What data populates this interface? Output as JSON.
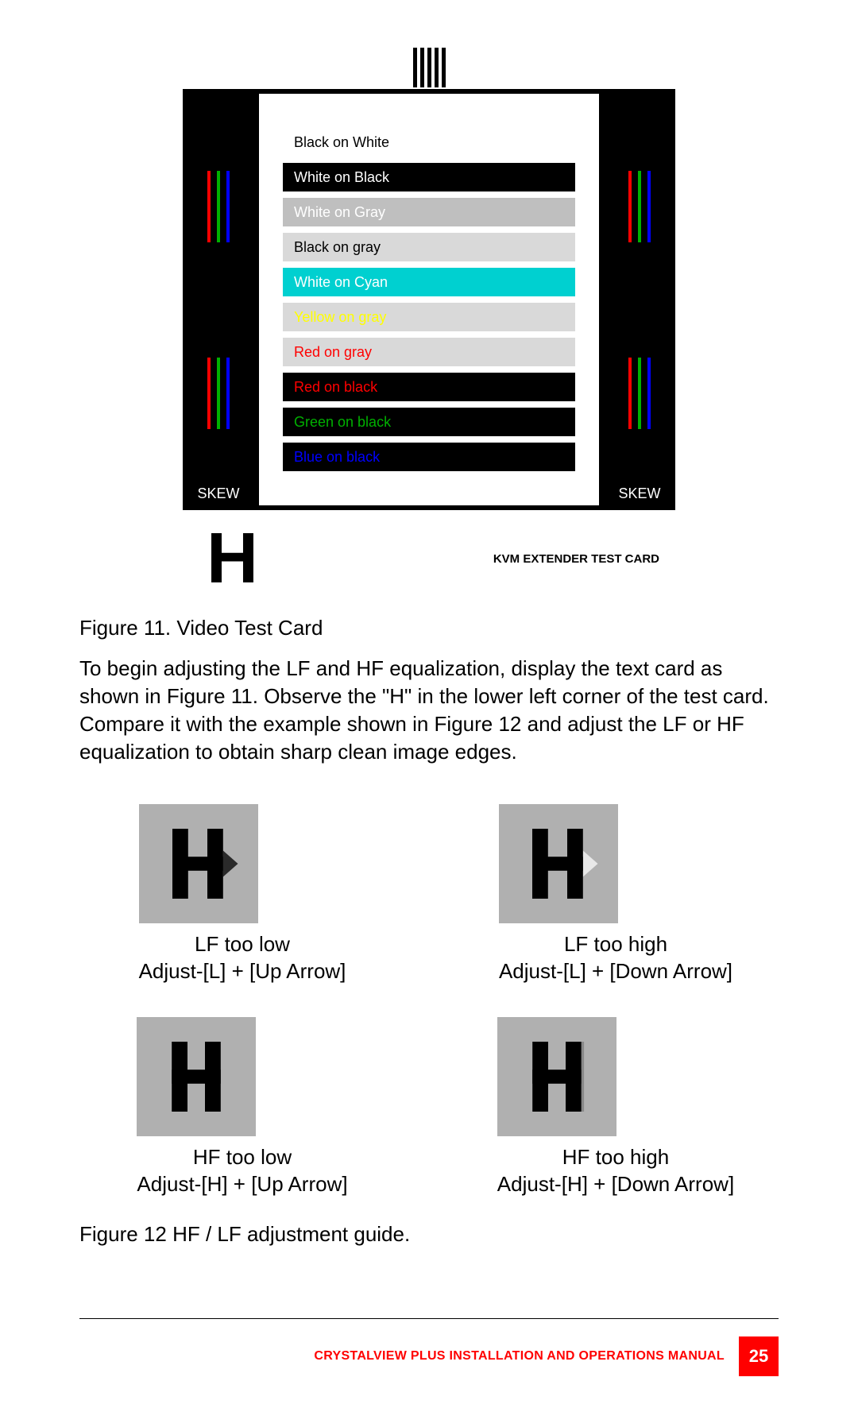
{
  "testCard": {
    "skewLabel": "SKEW",
    "rgbColors": {
      "red": "#ff0000",
      "green": "#00b000",
      "blue": "#0000ff"
    },
    "rows": [
      {
        "text": "Black on White",
        "bg": "#ffffff",
        "fg": "#000000"
      },
      {
        "text": "White on Black",
        "bg": "#000000",
        "fg": "#ffffff"
      },
      {
        "text": "White on Gray",
        "bg": "#bfbfbf",
        "fg": "#ffffff"
      },
      {
        "text": "Black on gray",
        "bg": "#d9d9d9",
        "fg": "#000000"
      },
      {
        "text": "White on Cyan",
        "bg": "#00d0d0",
        "fg": "#ffffff"
      },
      {
        "text": "Yellow on gray",
        "bg": "#d9d9d9",
        "fg": "#ffff00"
      },
      {
        "text": "Red on gray",
        "bg": "#d9d9d9",
        "fg": "#ff0000"
      },
      {
        "text": "Red on black",
        "bg": "#000000",
        "fg": "#ff0000"
      },
      {
        "text": "Green on black",
        "bg": "#000000",
        "fg": "#00b000"
      },
      {
        "text": "Blue on black",
        "bg": "#000000",
        "fg": "#0000ff"
      }
    ],
    "extenderLabel": "KVM EXTENDER TEST CARD",
    "bigH": "H"
  },
  "figure11Caption": "Figure 11. Video Test Card",
  "bodyParagraph": "To begin adjusting the LF and HF equalization, display the text card as shown in Figure 11.  Observe the \"H\" in the lower left corner of the test card.  Compare it with the example shown in Figure 12 and adjust the LF or HF equalization to obtain sharp clean image edges.",
  "hSamples": {
    "lfLow": {
      "label1": "LF too low",
      "label2": "Adjust-[L] + [Up Arrow]",
      "smear": "right-dark"
    },
    "lfHigh": {
      "label1": "LF too high",
      "label2": "Adjust-[L] + [Down Arrow]",
      "smear": "right-light"
    },
    "hfLow": {
      "label1": "HF too low",
      "label2": "Adjust-[H] + [Up Arrow]",
      "smear": "none"
    },
    "hfHigh": {
      "label1": "HF too high",
      "label2": "Adjust-[H] + [Down Arrow]",
      "smear": "slight"
    }
  },
  "figure12Caption": "Figure 12 HF / LF adjustment guide.",
  "footer": {
    "text": "CRYSTALVIEW PLUS INSTALLATION AND OPERATIONS MANUAL",
    "page": "25",
    "color": "#ff0000"
  }
}
